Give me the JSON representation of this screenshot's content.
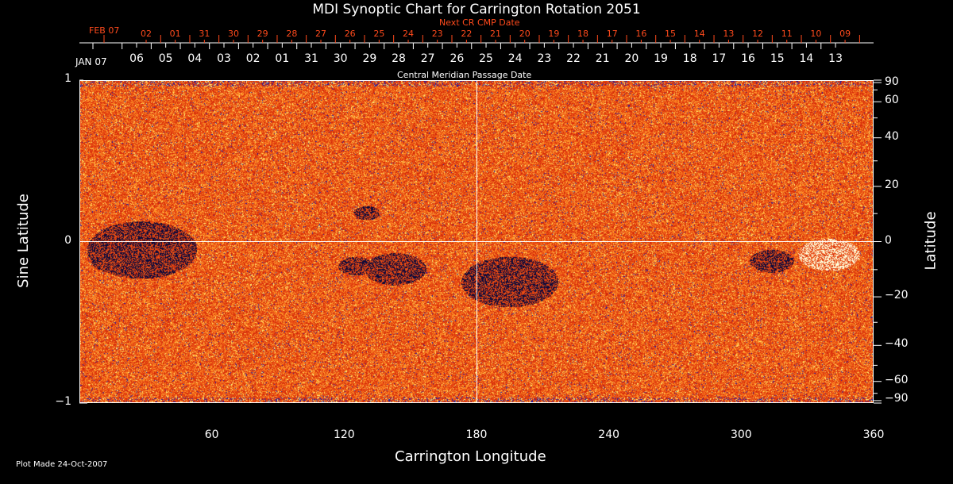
{
  "chart_data": {
    "type": "heatmap",
    "title": "MDI Synoptic Chart for Carrington Rotation 2051",
    "xlabel": "Carrington Longitude",
    "ylabel": "Sine Latitude",
    "y2label": "Latitude",
    "xlim": [
      0,
      360
    ],
    "ylim": [
      -1,
      1
    ],
    "xticks": [
      60,
      120,
      180,
      240,
      300,
      360
    ],
    "yticks": [
      {
        "v": 1,
        "label": "1"
      },
      {
        "v": 0,
        "label": "0"
      },
      {
        "v": -1,
        "label": "−1"
      }
    ],
    "y2ticks": [
      {
        "v": 90,
        "label": "90"
      },
      {
        "v": 60,
        "label": "60"
      },
      {
        "v": 40,
        "label": "40"
      },
      {
        "v": 20,
        "label": "20"
      },
      {
        "v": 0,
        "label": "0"
      },
      {
        "v": -20,
        "label": "−20"
      },
      {
        "v": -40,
        "label": "−40"
      },
      {
        "v": -60,
        "label": "−60"
      },
      {
        "v": -90,
        "label": "−90"
      }
    ],
    "cmp_axis_label": "Central Meridian Passage Date",
    "cmp_start_label": "JAN 07",
    "cmp_dates": [
      "06",
      "05",
      "04",
      "03",
      "02",
      "01",
      "31",
      "30",
      "29",
      "28",
      "27",
      "26",
      "25",
      "24",
      "23",
      "22",
      "21",
      "20",
      "19",
      "18",
      "17",
      "16",
      "15",
      "14",
      "13"
    ],
    "next_cr_axis_label": "Next CR CMP Date",
    "next_cr_start_label": "FEB 07",
    "next_cr_dates": [
      "02",
      "01",
      "31",
      "30",
      "29",
      "28",
      "27",
      "26",
      "25",
      "24",
      "23",
      "22",
      "21",
      "20",
      "19",
      "18",
      "17",
      "16",
      "15",
      "14",
      "13",
      "12",
      "11",
      "10",
      "09"
    ],
    "colors": {
      "background": "#e84a10",
      "axis": "#ffffff",
      "next_cr": "#ff4a1c"
    }
  },
  "footer": {
    "plot_made": "Plot Made 24-Oct-2007"
  }
}
